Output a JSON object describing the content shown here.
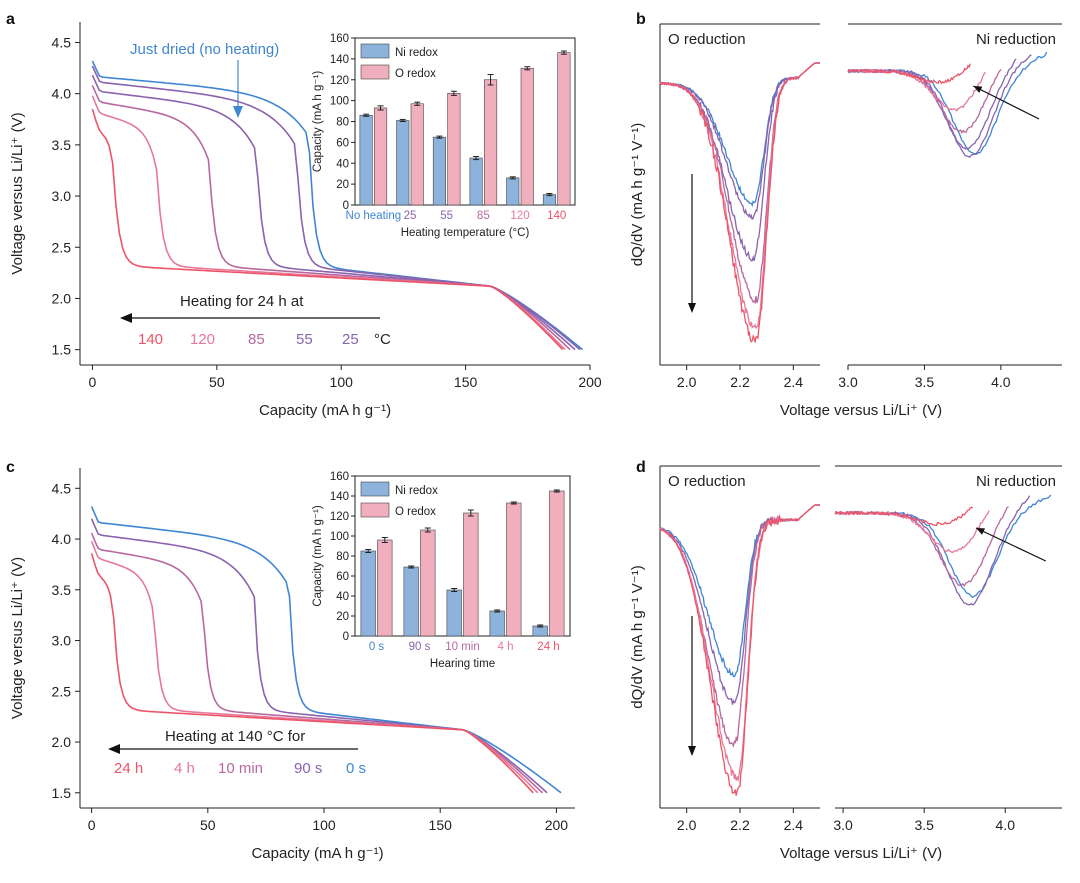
{
  "colors": {
    "blue": "#3f86d2",
    "purple": "#8a63ae",
    "mauve": "#b8689e",
    "pink": "#e7789a",
    "red": "#ec5466",
    "bar_ni": "#8db3dc",
    "bar_o": "#f1aebd",
    "mid": "#c85a8e"
  },
  "panels": [
    {
      "id": "a",
      "label": "a"
    },
    {
      "id": "b",
      "label": "b"
    },
    {
      "id": "c",
      "label": "c"
    },
    {
      "id": "d",
      "label": "d"
    }
  ],
  "chart_data": [
    {
      "panel": "a",
      "type": "line",
      "xlabel": "Capacity (mA h g⁻¹)",
      "ylabel": "Voltage versus Li/Li⁺ (V)",
      "xlim": [
        -5,
        200
      ],
      "ylim": [
        1.35,
        4.7
      ],
      "xticks": [
        0,
        50,
        100,
        150,
        200
      ],
      "yticks": [
        1.5,
        2.0,
        2.5,
        3.0,
        3.5,
        4.0,
        4.5
      ],
      "annotation": "Just dried (no heating)",
      "arrow_caption": "Heating for 24 h at",
      "temperature_labels": [
        {
          "text": "140",
          "color": "#ec5466"
        },
        {
          "text": "120",
          "color": "#e7789a"
        },
        {
          "text": "85",
          "color": "#b8689e"
        },
        {
          "text": "55",
          "color": "#8a63ae"
        },
        {
          "text": "25",
          "color": "#8a63ae"
        }
      ],
      "unit_label": "°C",
      "series": [
        {
          "name": "No heating",
          "color": "#3f86d2",
          "start": 4.32,
          "knee_x": 87,
          "knee_v": 3.7,
          "end_x": 197
        },
        {
          "name": "25",
          "color": "#8a63ae",
          "start": 4.27,
          "knee_x": 82,
          "knee_v": 3.6,
          "end_x": 196
        },
        {
          "name": "55",
          "color": "#8a63ae",
          "start": 4.18,
          "knee_x": 66,
          "knee_v": 3.55,
          "end_x": 194
        },
        {
          "name": "85",
          "color": "#b8689e",
          "start": 4.08,
          "knee_x": 47,
          "knee_v": 3.45,
          "end_x": 192
        },
        {
          "name": "120",
          "color": "#e7789a",
          "start": 3.98,
          "knee_x": 26,
          "knee_v": 3.35,
          "end_x": 190
        },
        {
          "name": "140",
          "color": "#ec5466",
          "start": 3.85,
          "knee_x": 9,
          "knee_v": 3.2,
          "end_x": 189
        }
      ],
      "inset": {
        "type": "bar",
        "categories": [
          "No heating",
          "25",
          "55",
          "85",
          "120",
          "140"
        ],
        "category_colors": [
          "#3f86d2",
          "#8a63ae",
          "#8a63ae",
          "#b8689e",
          "#e7789a",
          "#ec5466"
        ],
        "xlabel": "Heating temperature (°C)",
        "ylabel": "Capacity (mA h g⁻¹)",
        "ylim": [
          0,
          160
        ],
        "yticks": [
          0,
          20,
          40,
          60,
          80,
          100,
          120,
          140,
          160
        ],
        "series": [
          {
            "name": "Ni redox",
            "values": [
              86,
              81,
              65,
              45,
              26,
              10
            ],
            "errors": [
              1,
              1,
              1,
              1.5,
              1,
              1
            ]
          },
          {
            "name": "O redox",
            "values": [
              93,
              97,
              107,
              120,
              131,
              146
            ],
            "errors": [
              2,
              1.5,
              2,
              5,
              1.5,
              1.5
            ]
          }
        ]
      }
    },
    {
      "panel": "b",
      "type": "line",
      "xlabel": "Voltage versus Li/Li⁺ (V)",
      "ylabel": "dQ/dV (mA h g⁻¹ V⁻¹)",
      "left_title": "O reduction",
      "right_title": "Ni reduction",
      "left_xlim": [
        1.9,
        2.5
      ],
      "left_xticks": [
        2.0,
        2.2,
        2.4
      ],
      "right_xlim": [
        3.0,
        4.4
      ],
      "right_xticks": [
        3.0,
        3.5,
        4.0
      ],
      "series": [
        {
          "name": "No heating",
          "color": "#3f86d2",
          "o_min_x": 2.25,
          "o_depth": 0.45,
          "ni_min_x": 3.83,
          "ni_depth": 0.3,
          "ni_end": 4.3
        },
        {
          "name": "25",
          "color": "#8a63ae",
          "o_min_x": 2.25,
          "o_depth": 0.5,
          "ni_min_x": 3.8,
          "ni_depth": 0.31,
          "ni_end": 4.2
        },
        {
          "name": "55",
          "color": "#8a63ae",
          "o_min_x": 2.25,
          "o_depth": 0.65,
          "ni_min_x": 3.78,
          "ni_depth": 0.28,
          "ni_end": 4.1
        },
        {
          "name": "85",
          "color": "#b8689e",
          "o_min_x": 2.26,
          "o_depth": 0.8,
          "ni_min_x": 3.75,
          "ni_depth": 0.22,
          "ni_end": 4.0
        },
        {
          "name": "120",
          "color": "#e7789a",
          "o_min_x": 2.26,
          "o_depth": 0.9,
          "ni_min_x": 3.7,
          "ni_depth": 0.14,
          "ni_end": 3.9
        },
        {
          "name": "140",
          "color": "#ec5466",
          "o_min_x": 2.26,
          "o_depth": 0.95,
          "ni_min_x": 3.6,
          "ni_depth": 0.04,
          "ni_end": 3.8
        }
      ]
    },
    {
      "panel": "c",
      "type": "line",
      "xlabel": "Capacity (mA h g⁻¹)",
      "ylabel": "Voltage versus Li/Li⁺ (V)",
      "xlim": [
        -5,
        208
      ],
      "ylim": [
        1.35,
        4.7
      ],
      "xticks": [
        0,
        50,
        100,
        150,
        200
      ],
      "yticks": [
        1.5,
        2.0,
        2.5,
        3.0,
        3.5,
        4.0,
        4.5
      ],
      "arrow_caption": "Heating at 140 °C for",
      "time_labels": [
        {
          "text": "24 h",
          "color": "#ec5466"
        },
        {
          "text": "4 h",
          "color": "#e7789a"
        },
        {
          "text": "10 min",
          "color": "#b8689e"
        },
        {
          "text": "90 s",
          "color": "#8a63ae"
        },
        {
          "text": "0 s",
          "color": "#3f86d2"
        }
      ],
      "series": [
        {
          "name": "0 s",
          "color": "#3f86d2",
          "start": 4.32,
          "knee_x": 85,
          "knee_v": 3.65,
          "end_x": 202
        },
        {
          "name": "90 s",
          "color": "#8a63ae",
          "start": 4.2,
          "knee_x": 70,
          "knee_v": 3.55,
          "end_x": 196
        },
        {
          "name": "10 min",
          "color": "#b8689e",
          "start": 4.06,
          "knee_x": 48,
          "knee_v": 3.45,
          "end_x": 194
        },
        {
          "name": "4 h",
          "color": "#e7789a",
          "start": 3.98,
          "knee_x": 27,
          "knee_v": 3.35,
          "end_x": 192
        },
        {
          "name": "24 h",
          "color": "#ec5466",
          "start": 3.86,
          "knee_x": 10,
          "knee_v": 3.2,
          "end_x": 190
        }
      ],
      "inset": {
        "type": "bar",
        "categories": [
          "0 s",
          "90 s",
          "10 min",
          "4 h",
          "24 h"
        ],
        "category_colors": [
          "#3f86d2",
          "#8a63ae",
          "#b8689e",
          "#e7789a",
          "#ec5466"
        ],
        "xlabel": "Hearing time",
        "ylabel": "Capacity (mA h g⁻¹)",
        "ylim": [
          0,
          160
        ],
        "yticks": [
          0,
          20,
          40,
          60,
          80,
          100,
          120,
          140,
          160
        ],
        "series": [
          {
            "name": "Ni redox",
            "values": [
              85,
              69,
              46,
              25,
              10
            ],
            "errors": [
              1.5,
              1,
              1.5,
              1,
              1
            ]
          },
          {
            "name": "O redox",
            "values": [
              96,
              106,
              123,
              133,
              145
            ],
            "errors": [
              2.5,
              2,
              3,
              1,
              1
            ]
          }
        ]
      }
    },
    {
      "panel": "d",
      "type": "line",
      "xlabel": "Voltage versus Li/Li⁺ (V)",
      "ylabel": "dQ/dV (mA h g⁻¹ V⁻¹)",
      "left_title": "O reduction",
      "right_title": "Ni reduction",
      "left_xlim": [
        1.9,
        2.5
      ],
      "left_xticks": [
        2.0,
        2.2,
        2.4
      ],
      "right_xlim": [
        2.95,
        4.35
      ],
      "right_xticks": [
        3.0,
        3.5,
        4.0
      ],
      "series": [
        {
          "name": "0 s",
          "color": "#3f86d2",
          "o_min_x": 2.18,
          "o_depth": 0.55,
          "ni_min_x": 3.8,
          "ni_depth": 0.3,
          "ni_end": 4.28
        },
        {
          "name": "90 s",
          "color": "#8a63ae",
          "o_min_x": 2.18,
          "o_depth": 0.65,
          "ni_min_x": 3.78,
          "ni_depth": 0.33,
          "ni_end": 4.15
        },
        {
          "name": "10 min",
          "color": "#b8689e",
          "o_min_x": 2.18,
          "o_depth": 0.8,
          "ni_min_x": 3.74,
          "ni_depth": 0.26,
          "ni_end": 4.02
        },
        {
          "name": "4 h",
          "color": "#e7789a",
          "o_min_x": 2.19,
          "o_depth": 0.92,
          "ni_min_x": 3.68,
          "ni_depth": 0.14,
          "ni_end": 3.9
        },
        {
          "name": "24 h",
          "color": "#ec5466",
          "o_min_x": 2.19,
          "o_depth": 0.98,
          "ni_min_x": 3.6,
          "ni_depth": 0.04,
          "ni_end": 3.8
        }
      ]
    }
  ]
}
